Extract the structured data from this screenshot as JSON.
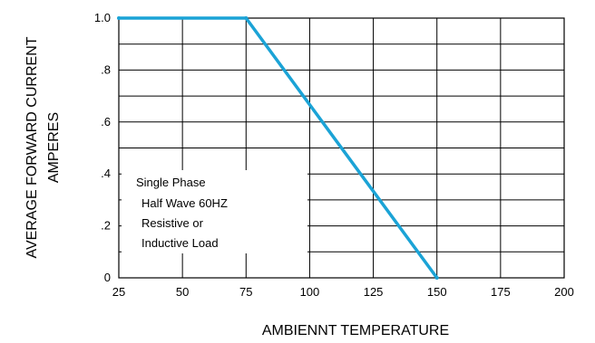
{
  "chart_data": {
    "type": "line",
    "xlabel": "AMBIENNT TEMPERATURE",
    "ylabel_lines": [
      "AVERAGE FORWARD CURRENT",
      "AMPERES"
    ],
    "x_ticks": [
      25,
      50,
      75,
      100,
      125,
      150,
      175,
      200
    ],
    "x_tick_labels": [
      "25",
      "50",
      "75",
      "100",
      "125",
      "150",
      "175",
      "200"
    ],
    "y_ticks": [
      0,
      0.2,
      0.4,
      0.6,
      0.8,
      1.0
    ],
    "y_tick_labels": [
      "0",
      ".2",
      ".4",
      ".6",
      ".8",
      "1.0"
    ],
    "xlim": [
      25,
      200
    ],
    "ylim": [
      0,
      1.0
    ],
    "grid": true,
    "series": [
      {
        "x": [
          25,
          75,
          150
        ],
        "y": [
          1.0,
          1.0,
          0
        ],
        "color": "#1ba3d6"
      }
    ],
    "annotation_lines": [
      "Single Phase",
      "Half Wave 60HZ",
      "Resistive or",
      "Inductive Load"
    ]
  }
}
